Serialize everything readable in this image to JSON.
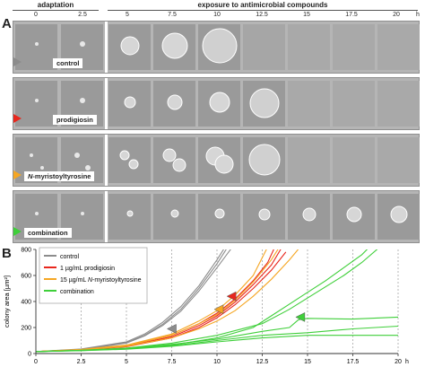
{
  "figure": {
    "panel_a": "A",
    "panel_b": "B",
    "phase_adaptation": "adaptation",
    "phase_exposure": "exposure to antimicrobial compounds",
    "timepoints": [
      "0",
      "2.5",
      "5",
      "7.5",
      "10",
      "12.5",
      "15",
      "17.5",
      "20",
      "h"
    ],
    "rows": [
      {
        "label": "control",
        "color": "#8c8c8c"
      },
      {
        "label": "prodigiosin",
        "color": "#e8271d"
      },
      {
        "label_italic": "N",
        "label_rest": "-myristoyltyrosine",
        "color": "#f5a623"
      },
      {
        "label": "combination",
        "color": "#3fcf3a"
      }
    ]
  },
  "chart_data": {
    "type": "line",
    "ylabel": "colony area [µm²]",
    "xlim": [
      0,
      20
    ],
    "ylim": [
      0,
      800
    ],
    "xticks": [
      "0",
      "2.5",
      "5",
      "7.5",
      "10",
      "12.5",
      "15",
      "17.5",
      "20"
    ],
    "x_unit_label": "h",
    "yticks": [
      "0",
      "200",
      "400",
      "600",
      "800"
    ],
    "legend_position": "top-left",
    "series": [
      {
        "name": "control",
        "color": "#8c8c8c",
        "lines": [
          [
            [
              0,
              15
            ],
            [
              2.5,
              35
            ],
            [
              5,
              90
            ],
            [
              6,
              150
            ],
            [
              7,
              240
            ],
            [
              8,
              360
            ],
            [
              9,
              520
            ],
            [
              10,
              720
            ],
            [
              10.5,
              830
            ]
          ],
          [
            [
              0,
              15
            ],
            [
              2.5,
              32
            ],
            [
              5,
              85
            ],
            [
              6,
              140
            ],
            [
              7,
              225
            ],
            [
              8,
              340
            ],
            [
              9,
              500
            ],
            [
              10,
              690
            ],
            [
              10.6,
              820
            ]
          ],
          [
            [
              0,
              15
            ],
            [
              2.5,
              30
            ],
            [
              5,
              80
            ],
            [
              6,
              135
            ],
            [
              7,
              215
            ],
            [
              8,
              325
            ],
            [
              9,
              480
            ],
            [
              10,
              660
            ],
            [
              10.8,
              810
            ]
          ]
        ]
      },
      {
        "name": "1 µg/mL prodigiosin",
        "color": "#e8271d",
        "lines": [
          [
            [
              0,
              15
            ],
            [
              2.5,
              30
            ],
            [
              5,
              60
            ],
            [
              7.5,
              140
            ],
            [
              9,
              230
            ],
            [
              10,
              310
            ],
            [
              11,
              420
            ],
            [
              12,
              560
            ],
            [
              12.8,
              700
            ],
            [
              13.2,
              820
            ]
          ],
          [
            [
              0,
              15
            ],
            [
              2.5,
              28
            ],
            [
              5,
              55
            ],
            [
              7.5,
              130
            ],
            [
              9,
              215
            ],
            [
              10,
              290
            ],
            [
              11,
              395
            ],
            [
              12,
              530
            ],
            [
              13,
              680
            ],
            [
              13.6,
              820
            ]
          ],
          [
            [
              0,
              15
            ],
            [
              2.5,
              27
            ],
            [
              5,
              52
            ],
            [
              7.5,
              120
            ],
            [
              9,
              200
            ],
            [
              10,
              275
            ],
            [
              11,
              375
            ],
            [
              12,
              500
            ],
            [
              13,
              640
            ],
            [
              13.8,
              780
            ]
          ]
        ]
      },
      {
        "name_prefix": "15 µg/mL ",
        "name_italic": "N",
        "name_suffix": "-myristoyltyrosine",
        "color": "#f5a623",
        "lines": [
          [
            [
              0,
              15
            ],
            [
              2.5,
              32
            ],
            [
              5,
              65
            ],
            [
              7.5,
              150
            ],
            [
              9,
              250
            ],
            [
              10,
              330
            ],
            [
              11,
              450
            ],
            [
              12,
              600
            ],
            [
              12.8,
              820
            ]
          ],
          [
            [
              0,
              15
            ],
            [
              2.5,
              30
            ],
            [
              5,
              60
            ],
            [
              7.5,
              140
            ],
            [
              9,
              230
            ],
            [
              10,
              300
            ],
            [
              11,
              410
            ],
            [
              12,
              550
            ],
            [
              13,
              720
            ],
            [
              13.5,
              830
            ]
          ],
          [
            [
              0,
              15
            ],
            [
              2.5,
              28
            ],
            [
              5,
              55
            ],
            [
              7.5,
              120
            ],
            [
              9,
              190
            ],
            [
              10,
              250
            ],
            [
              11,
              330
            ],
            [
              12,
              440
            ],
            [
              13,
              570
            ],
            [
              14,
              720
            ],
            [
              14.6,
              820
            ]
          ]
        ]
      },
      {
        "name": "combination",
        "color": "#3fcf3a",
        "lines": [
          [
            [
              0,
              15
            ],
            [
              2.5,
              25
            ],
            [
              5,
              40
            ],
            [
              7.5,
              70
            ],
            [
              10,
              110
            ],
            [
              12.5,
              170
            ],
            [
              14,
              200
            ],
            [
              14.5,
              260
            ],
            [
              15,
              270
            ],
            [
              17.5,
              265
            ],
            [
              20,
              280
            ]
          ],
          [
            [
              0,
              15
            ],
            [
              2.5,
              24
            ],
            [
              5,
              38
            ],
            [
              7.5,
              65
            ],
            [
              10,
              120
            ],
            [
              12,
              200
            ],
            [
              13,
              290
            ],
            [
              14,
              380
            ],
            [
              15,
              470
            ],
            [
              16,
              560
            ],
            [
              17,
              660
            ],
            [
              18,
              760
            ],
            [
              18.5,
              830
            ]
          ],
          [
            [
              0,
              15
            ],
            [
              2.5,
              23
            ],
            [
              5,
              35
            ],
            [
              7.5,
              60
            ],
            [
              10,
              100
            ],
            [
              12.5,
              140
            ],
            [
              15,
              160
            ],
            [
              17.5,
              190
            ],
            [
              20,
              210
            ]
          ],
          [
            [
              0,
              15
            ],
            [
              2.5,
              22
            ],
            [
              5,
              33
            ],
            [
              7.5,
              55
            ],
            [
              10,
              90
            ],
            [
              12.5,
              120
            ],
            [
              15,
              140
            ],
            [
              17.5,
              140
            ],
            [
              20,
              140
            ]
          ],
          [
            [
              0,
              15
            ],
            [
              2.5,
              25
            ],
            [
              5,
              42
            ],
            [
              7.5,
              80
            ],
            [
              10,
              140
            ],
            [
              12.5,
              230
            ],
            [
              14,
              340
            ],
            [
              15.5,
              470
            ],
            [
              17,
              600
            ],
            [
              18,
              700
            ],
            [
              19,
              820
            ]
          ]
        ]
      }
    ],
    "markers": [
      {
        "series": "control",
        "x": 7.5,
        "y": 190
      },
      {
        "series": "1 µg/mL prodigiosin",
        "x": 10.8,
        "y": 440
      },
      {
        "series": "15 µg/mL N-myristoyltyrosine",
        "x": 10.1,
        "y": 340
      },
      {
        "series": "combination",
        "x": 14.6,
        "y": 280
      }
    ]
  }
}
